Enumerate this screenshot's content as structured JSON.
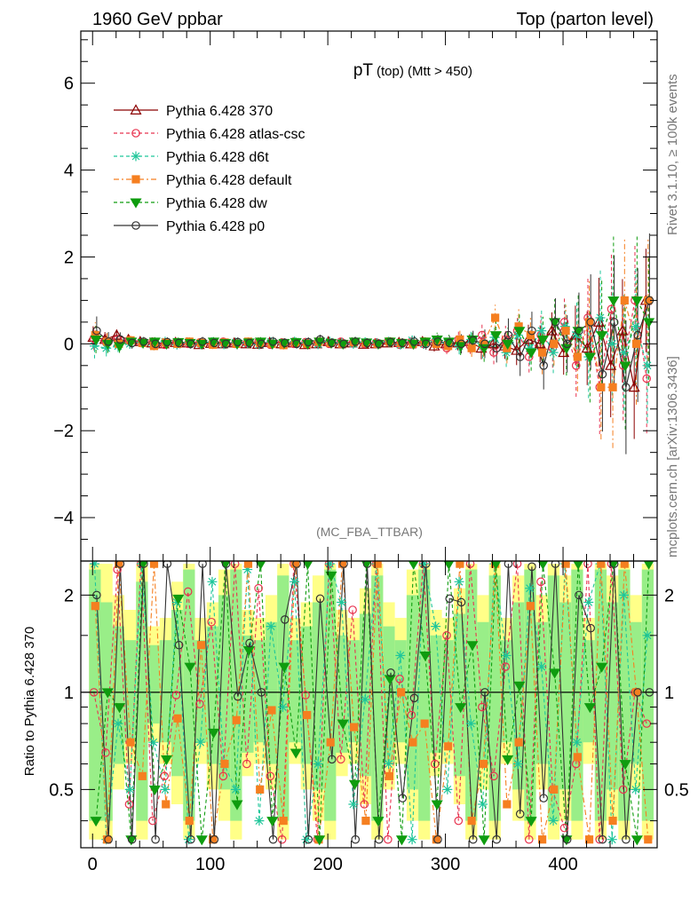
{
  "header": {
    "left": "1960 GeV ppbar",
    "right": "Top (parton level)"
  },
  "side_text": {
    "rivet": "Rivet 3.1.10, ≥ 100k events",
    "mcplots": "mcplots.cern.ch [arXiv:1306.3436]"
  },
  "analysis_label": "(MC_FBA_TTBAR)",
  "colors": {
    "p370": "#8b0000",
    "atlas": "#e8334f",
    "d6t": "#1fc69a",
    "default": "#f57f20",
    "dw": "#0f9c0f",
    "p0": "#333333",
    "band_yellow": "#ffff88",
    "band_green": "#99ee88"
  },
  "chart_data": [
    {
      "type": "line",
      "title": "pT (top) (Mtt > 450)",
      "title_main": "pT",
      "title_sub": "(top) (Mtt > 450)",
      "xlabel": "",
      "ylabel": "",
      "xlim": [
        -10,
        480
      ],
      "ylim": [
        -5,
        7.2
      ],
      "yticks": [
        -4,
        -2,
        0,
        2,
        4,
        6
      ],
      "ytick_labels": [
        "−4",
        "−2",
        "0",
        "2",
        "4",
        "6"
      ],
      "legend_position": "top-left",
      "x": [
        2,
        12,
        22,
        32,
        42,
        52,
        62,
        72,
        82,
        92,
        102,
        112,
        122,
        132,
        142,
        152,
        162,
        172,
        182,
        192,
        202,
        212,
        222,
        232,
        242,
        252,
        262,
        272,
        282,
        292,
        302,
        312,
        322,
        332,
        342,
        352,
        362,
        372,
        382,
        392,
        402,
        412,
        422,
        432,
        442,
        452,
        462,
        472
      ],
      "series": [
        {
          "name": "Pythia 6.428 370",
          "marker": "triangle",
          "dash": "",
          "color_key": "p370",
          "values": [
            0.15,
            0.1,
            0.2,
            0.1,
            0.05,
            0.02,
            0.0,
            0.03,
            0.02,
            -0.02,
            0.01,
            0.0,
            0.02,
            0.0,
            -0.01,
            0.03,
            0.0,
            0.02,
            -0.02,
            0.0,
            0.05,
            0.0,
            0.02,
            -0.01,
            0.0,
            0.02,
            0.03,
            0.0,
            0.05,
            -0.05,
            0.0,
            0.02,
            0.05,
            -0.1,
            0.0,
            -0.05,
            -0.15,
            0.1,
            0.0,
            0.3,
            -0.2,
            0.2,
            -0.1,
            0.5,
            -0.5,
            0.3,
            -1.0,
            1.0
          ]
        },
        {
          "name": "Pythia 6.428 atlas-csc",
          "marker": "circle-open",
          "dash": "4,3",
          "color_key": "atlas",
          "values": [
            0.12,
            0.05,
            0.1,
            0.08,
            0.02,
            0.05,
            -0.02,
            0.04,
            0.0,
            0.03,
            -0.01,
            0.05,
            0.0,
            0.02,
            0.05,
            -0.02,
            0.03,
            0.0,
            0.04,
            0.02,
            0.0,
            0.05,
            0.02,
            0.0,
            0.03,
            0.05,
            -0.02,
            0.05,
            0.0,
            0.05,
            -0.1,
            0.1,
            -0.05,
            0.2,
            -0.2,
            0.1,
            0.3,
            -0.3,
            0.2,
            -0.1,
            0.5,
            -0.5,
            0.6,
            -1.0,
            0.8,
            -0.5,
            1.0,
            -0.8
          ]
        },
        {
          "name": "Pythia 6.428 d6t",
          "marker": "star",
          "dash": "4,3",
          "color_key": "d6t",
          "values": [
            -0.05,
            -0.1,
            -0.05,
            0.0,
            0.03,
            -0.03,
            0.05,
            -0.02,
            0.03,
            0.0,
            0.04,
            -0.01,
            0.03,
            0.02,
            -0.02,
            0.04,
            0.0,
            0.05,
            0.02,
            -0.01,
            0.05,
            0.02,
            0.0,
            0.04,
            0.02,
            0.05,
            -0.02,
            0.08,
            0.0,
            0.05,
            0.02,
            -0.05,
            0.1,
            -0.05,
            0.15,
            -0.2,
            0.2,
            -0.1,
            0.3,
            -0.2,
            0.4,
            0.2,
            -0.3,
            0.6,
            0.0,
            -0.2,
            0.4,
            -0.5
          ]
        },
        {
          "name": "Pythia 6.428 default",
          "marker": "square",
          "dash": "6,3,2,3",
          "color_key": "default",
          "values": [
            0.2,
            0.05,
            0.0,
            0.08,
            0.02,
            -0.05,
            0.03,
            0.0,
            0.05,
            0.02,
            -0.02,
            0.03,
            0.0,
            0.05,
            0.02,
            0.0,
            -0.03,
            0.03,
            0.0,
            0.05,
            0.02,
            0.0,
            0.04,
            0.02,
            0.0,
            0.05,
            0.02,
            0.0,
            0.05,
            0.0,
            -0.05,
            0.1,
            -0.1,
            0.0,
            0.6,
            -0.1,
            0.4,
            0.2,
            -0.2,
            0.0,
            0.3,
            -0.3,
            0.5,
            -1.0,
            -1.0,
            1.0,
            0.0,
            1.0
          ]
        },
        {
          "name": "Pythia 6.428 dw",
          "marker": "triangle-down",
          "dash": "4,3",
          "color_key": "dw",
          "values": [
            0.1,
            0.0,
            -0.05,
            0.05,
            0.02,
            0.05,
            0.0,
            0.04,
            0.02,
            0.0,
            0.05,
            0.02,
            0.0,
            0.03,
            0.05,
            0.0,
            0.02,
            0.04,
            0.0,
            0.05,
            0.02,
            0.0,
            0.05,
            0.03,
            0.0,
            0.05,
            0.02,
            0.0,
            0.05,
            0.1,
            0.05,
            -0.05,
            0.1,
            -0.1,
            0.2,
            0.0,
            0.3,
            -0.2,
            0.1,
            0.5,
            -0.1,
            0.3,
            -0.3,
            0.2,
            1.0,
            -0.5,
            1.0,
            0.5
          ]
        },
        {
          "name": "Pythia 6.428 p0",
          "marker": "circle-open",
          "dash": "",
          "color_key": "p0",
          "values": [
            0.3,
            0.05,
            0.1,
            0.02,
            0.05,
            0.0,
            0.04,
            0.02,
            0.0,
            0.05,
            0.02,
            0.0,
            0.04,
            0.02,
            0.0,
            0.05,
            0.02,
            0.0,
            0.04,
            0.1,
            0.02,
            0.0,
            0.05,
            0.02,
            0.0,
            0.04,
            0.02,
            0.05,
            0.0,
            0.05,
            0.02,
            0.0,
            0.08,
            0.0,
            -0.1,
            0.2,
            -0.3,
            0.3,
            -0.5,
            0.5,
            0.0,
            0.3,
            0.5,
            -0.7,
            0.5,
            -1.0,
            0.2,
            1.0
          ]
        }
      ],
      "errors": [
        0.3,
        0.2,
        0.15,
        0.12,
        0.1,
        0.1,
        0.1,
        0.1,
        0.1,
        0.1,
        0.1,
        0.1,
        0.1,
        0.1,
        0.1,
        0.1,
        0.1,
        0.1,
        0.1,
        0.1,
        0.1,
        0.1,
        0.1,
        0.1,
        0.1,
        0.1,
        0.1,
        0.12,
        0.12,
        0.15,
        0.15,
        0.2,
        0.2,
        0.3,
        0.3,
        0.35,
        0.4,
        0.4,
        0.5,
        0.5,
        0.6,
        0.8,
        1.0,
        1.2,
        1.4,
        1.4,
        1.4,
        1.4
      ]
    },
    {
      "type": "line",
      "title": "",
      "xlabel": "",
      "ylabel": "Ratio to Pythia 6.428 370",
      "xlim": [
        -10,
        480
      ],
      "ylim": [
        0.33,
        2.55
      ],
      "yscale": "log",
      "yticks": [
        0.5,
        1,
        2
      ],
      "ytick_labels": [
        "0.5",
        "1",
        "2"
      ],
      "xticks": [
        0,
        100,
        200,
        300,
        400
      ],
      "xtick_labels": [
        "0",
        "100",
        "200",
        "300",
        "400"
      ],
      "reference_line": 1,
      "band_yellow": {
        "low": [
          0.35,
          0.35,
          0.5,
          0.6,
          0.35,
          0.7,
          0.6,
          0.45,
          0.35,
          0.6,
          0.5,
          0.4,
          0.35,
          0.55,
          0.6,
          0.5,
          0.35,
          0.6,
          0.5,
          0.4,
          0.35,
          0.55,
          0.6,
          0.45,
          0.35,
          0.5,
          0.6,
          0.4,
          0.35,
          0.55,
          0.6,
          0.45,
          0.35,
          0.5,
          0.35,
          0.6,
          0.4,
          0.35,
          0.5,
          0.35,
          0.4,
          0.35,
          0.6,
          0.35,
          0.4,
          0.35,
          0.5,
          0.35
        ],
        "high": [
          2.5,
          2.5,
          2.0,
          1.8,
          2.5,
          1.6,
          1.7,
          2.2,
          2.5,
          1.7,
          1.9,
          2.4,
          2.5,
          1.8,
          1.7,
          2.0,
          2.5,
          1.7,
          1.9,
          2.3,
          2.5,
          1.8,
          1.7,
          2.1,
          2.5,
          1.9,
          1.7,
          2.4,
          2.5,
          1.8,
          1.7,
          2.1,
          2.5,
          2.0,
          2.5,
          1.7,
          2.3,
          2.5,
          2.0,
          2.5,
          2.3,
          2.5,
          1.7,
          2.5,
          2.3,
          2.5,
          2.0,
          2.5
        ]
      },
      "band_green": {
        "low": [
          0.4,
          0.4,
          0.6,
          0.7,
          0.4,
          0.8,
          0.7,
          0.55,
          0.4,
          0.7,
          0.6,
          0.5,
          0.4,
          0.65,
          0.7,
          0.6,
          0.4,
          0.7,
          0.6,
          0.5,
          0.4,
          0.65,
          0.7,
          0.55,
          0.4,
          0.6,
          0.7,
          0.5,
          0.4,
          0.65,
          0.7,
          0.55,
          0.4,
          0.6,
          0.4,
          0.7,
          0.5,
          0.4,
          0.6,
          0.4,
          0.5,
          0.4,
          0.7,
          0.4,
          0.5,
          0.4,
          0.6,
          0.4
        ],
        "high": [
          2.4,
          1.9,
          1.6,
          1.45,
          2.2,
          1.4,
          1.45,
          1.8,
          2.4,
          1.45,
          1.6,
          2.0,
          2.4,
          1.5,
          1.45,
          1.65,
          2.3,
          1.45,
          1.6,
          1.9,
          2.4,
          1.5,
          1.45,
          1.75,
          2.3,
          1.6,
          1.45,
          2.0,
          2.4,
          1.5,
          1.45,
          1.75,
          2.4,
          1.65,
          2.3,
          1.45,
          1.9,
          2.4,
          1.65,
          2.3,
          1.9,
          2.4,
          1.45,
          2.4,
          1.9,
          2.4,
          1.65,
          2.4
        ]
      },
      "series": [
        {
          "name": "Pythia 6.428 370",
          "color_key": "p370",
          "marker": "triangle",
          "dash": "",
          "values": [
            1,
            1,
            1,
            1,
            1,
            1,
            1,
            1,
            1,
            1,
            1,
            1,
            1,
            1,
            1,
            1,
            1,
            1,
            1,
            1,
            1,
            1,
            1,
            1,
            1,
            1,
            1,
            1,
            1,
            1,
            1,
            1,
            1,
            1,
            1,
            1,
            1,
            1,
            1,
            1,
            1,
            1,
            1,
            1,
            1,
            1,
            1,
            1
          ]
        },
        {
          "name": "Pythia 6.428 atlas-csc",
          "color_key": "atlas",
          "marker": "circle-open",
          "dash": "4,3",
          "values": [
            1.0,
            0.65,
            2.4,
            0.45,
            2.5,
            0.4,
            0.55,
            0.98,
            2.05,
            0.92,
            1.65,
            0.55,
            2.5,
            0.6,
            2.1,
            0.55,
            0.35,
            2.5,
            0.98,
            0.35,
            2.5,
            0.62,
            1.8,
            0.45,
            2.5,
            0.35,
            1.1,
            0.85,
            2.5,
            0.6,
            1.5,
            0.4,
            2.5,
            0.9,
            0.55,
            1.2,
            2.5,
            0.35,
            2.2,
            0.5,
            0.38,
            0.6,
            2.5,
            0.35,
            2.5,
            0.5,
            1.0,
            0.8
          ]
        },
        {
          "name": "Pythia 6.428 d6t",
          "color_key": "d6t",
          "marker": "star",
          "dash": "4,3",
          "values": [
            2.5,
            0.35,
            0.8,
            0.5,
            2.5,
            0.7,
            0.5,
            1.9,
            0.35,
            0.7,
            2.2,
            0.6,
            0.5,
            2.4,
            0.4,
            1.6,
            0.9,
            2.2,
            0.35,
            0.6,
            2.5,
            1.9,
            0.45,
            0.95,
            2.5,
            0.6,
            1.3,
            0.35,
            2.5,
            1.6,
            0.5,
            2.2,
            0.8,
            0.45,
            2.5,
            1.3,
            0.6,
            2.1,
            1.2,
            0.4,
            2.5,
            0.7,
            1.9,
            2.5,
            0.35,
            2.0,
            0.5,
            1.5
          ]
        },
        {
          "name": "Pythia 6.428 default",
          "color_key": "default",
          "marker": "square",
          "dash": "6,3,2,3",
          "values": [
            1.85,
            0.35,
            2.5,
            0.7,
            0.55,
            2.5,
            0.45,
            0.83,
            0.4,
            1.4,
            0.35,
            0.6,
            0.82,
            2.5,
            0.5,
            0.88,
            0.4,
            2.5,
            0.85,
            0.35,
            0.7,
            2.5,
            0.78,
            0.4,
            2.5,
            0.55,
            1.0,
            0.7,
            0.8,
            0.35,
            0.68,
            2.5,
            0.4,
            0.6,
            2.5,
            0.45,
            0.7,
            1.85,
            0.35,
            0.5,
            2.5,
            0.63,
            0.35,
            2.5,
            0.4,
            2.5,
            1.0,
            0.35
          ]
        },
        {
          "name": "Pythia 6.428 dw",
          "color_key": "dw",
          "marker": "triangle-down",
          "dash": "4,3",
          "values": [
            0.4,
            1.0,
            0.9,
            0.35,
            2.5,
            0.5,
            0.62,
            1.95,
            1.2,
            0.35,
            0.75,
            2.5,
            0.45,
            1.35,
            2.5,
            0.4,
            1.2,
            0.65,
            2.5,
            0.35,
            2.3,
            0.8,
            0.52,
            2.5,
            0.4,
            1.1,
            0.35,
            2.5,
            1.3,
            0.45,
            2.5,
            0.9,
            1.4,
            0.35,
            2.5,
            0.62,
            1.05,
            0.4,
            2.5,
            1.15,
            0.35,
            2.5,
            0.9,
            1.2,
            2.5,
            0.6,
            0.35,
            2.5
          ]
        },
        {
          "name": "Pythia 6.428 p0",
          "color_key": "p0",
          "marker": "circle-open",
          "dash": "",
          "values": [
            2.0,
            0.35,
            2.5,
            0.35,
            2.5,
            0.35,
            2.5,
            1.4,
            0.35,
            2.5,
            0.35,
            2.5,
            0.97,
            1.42,
            1.0,
            0.35,
            1.68,
            2.5,
            0.35,
            1.95,
            0.62,
            2.5,
            0.35,
            2.5,
            0.35,
            1.15,
            0.47,
            0.96,
            2.5,
            0.35,
            1.95,
            1.9,
            0.35,
            1.0,
            0.35,
            2.5,
            0.42,
            2.45,
            0.47,
            2.5,
            0.35,
            2.0,
            1.58,
            0.35,
            2.5,
            0.35,
            1.0,
            1.0
          ]
        }
      ]
    }
  ]
}
